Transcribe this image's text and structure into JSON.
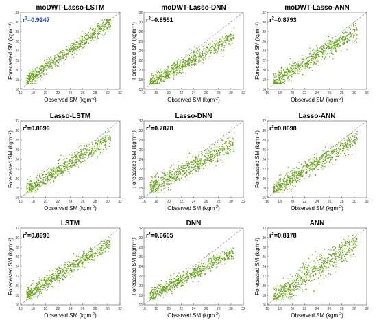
{
  "figure": {
    "point_color": "#6aa51e",
    "refline_color": "#8c8c8c",
    "highlight_r2_color": "#1f3fd6",
    "normal_r2_color": "#000000"
  },
  "chart_data": [
    {
      "type": "scatter",
      "title": "moDWT-Lasso-LSTM",
      "r2_base": "r",
      "r2_sup": "2",
      "r2_value": "=0.9247",
      "r2_highlight": true,
      "xlabel_main": "Observed SM (kgm",
      "xlabel_sup": "-2",
      "xlabel_end": ")",
      "ylabel": "Forecasted SM (kgm⁻²)",
      "xlim": [
        16,
        32
      ],
      "ylim": [
        16,
        32
      ],
      "xticks": [
        "16",
        "18",
        "20",
        "22",
        "24",
        "26",
        "28",
        "30",
        "32"
      ],
      "yticks": [
        "16",
        "18",
        "20",
        "22",
        "24",
        "26",
        "28",
        "30",
        "32"
      ],
      "grid": false,
      "reference_line": "1:1",
      "fit": {
        "a": 2.5,
        "b": 0.9,
        "sd": 0.75,
        "n": 700
      }
    },
    {
      "type": "scatter",
      "title": "moDWT-Lasso-DNN",
      "r2_base": "r",
      "r2_sup": "2",
      "r2_value": "=0.8551",
      "r2_highlight": false,
      "xlabel_main": "Observed SM (kgm",
      "xlabel_sup": "-2",
      "xlabel_end": ")",
      "ylabel": "Forecasted SM (kgm⁻²)",
      "xlim": [
        16,
        32
      ],
      "ylim": [
        16,
        32
      ],
      "xticks": [
        "16",
        "18",
        "20",
        "22",
        "24",
        "26",
        "28",
        "30",
        "32"
      ],
      "yticks": [
        "16",
        "18",
        "20",
        "22",
        "24",
        "26",
        "28",
        "30",
        "32"
      ],
      "grid": false,
      "reference_line": "1:1",
      "fit": {
        "a": 5.0,
        "b": 0.72,
        "sd": 0.8,
        "n": 700
      }
    },
    {
      "type": "scatter",
      "title": "moDWT-Lasso-ANN",
      "r2_base": "r",
      "r2_sup": "2",
      "r2_value": "=0.8793",
      "r2_highlight": false,
      "xlabel_main": "Observed SM (kgm",
      "xlabel_sup": "-2",
      "xlabel_end": ")",
      "ylabel": "Forecasted SM (kgm⁻²)",
      "xlim": [
        16,
        32
      ],
      "ylim": [
        16,
        32
      ],
      "xticks": [
        "16",
        "18",
        "20",
        "22",
        "24",
        "26",
        "28",
        "30",
        "32"
      ],
      "yticks": [
        "16",
        "18",
        "20",
        "22",
        "24",
        "26",
        "28",
        "30",
        "32"
      ],
      "grid": false,
      "reference_line": "1:1",
      "fit": {
        "a": 4.5,
        "b": 0.77,
        "sd": 0.9,
        "n": 700
      }
    },
    {
      "type": "scatter",
      "title": "Lasso-LSTM",
      "r2_base": "r",
      "r2_sup": "2",
      "r2_value": "=0.8699",
      "r2_highlight": false,
      "xlabel_main": "Observed SM (kgm",
      "xlabel_sup": "-2",
      "xlabel_end": ")",
      "ylabel": "Forecasted SM (kgm⁻²)",
      "xlim": [
        16,
        32
      ],
      "ylim": [
        16,
        32
      ],
      "xticks": [
        "16",
        "18",
        "20",
        "22",
        "24",
        "26",
        "28",
        "30",
        "32"
      ],
      "yticks": [
        "16",
        "18",
        "20",
        "22",
        "24",
        "26",
        "28",
        "30",
        "32"
      ],
      "grid": false,
      "reference_line": "1:1",
      "fit": {
        "a": 4.0,
        "b": 0.8,
        "sd": 0.85,
        "n": 700
      }
    },
    {
      "type": "scatter",
      "title": "Lasso-DNN",
      "r2_base": "r",
      "r2_sup": "2",
      "r2_value": "=0.7878",
      "r2_highlight": false,
      "xlabel_main": "Observed SM (kgm",
      "xlabel_sup": "-2",
      "xlabel_end": ")",
      "ylabel": "Forecasted SM (kgm⁻²)",
      "xlim": [
        16,
        32
      ],
      "ylim": [
        16,
        32
      ],
      "xticks": [
        "16",
        "18",
        "20",
        "22",
        "24",
        "26",
        "28",
        "30",
        "32"
      ],
      "yticks": [
        "16",
        "18",
        "20",
        "22",
        "24",
        "26",
        "28",
        "30",
        "32"
      ],
      "grid": false,
      "reference_line": "1:1",
      "fit": {
        "a": 6.5,
        "b": 0.68,
        "sd": 1.0,
        "n": 700
      }
    },
    {
      "type": "scatter",
      "title": "Lasso-ANN",
      "r2_base": "r",
      "r2_sup": "2",
      "r2_value": "=0.8698",
      "r2_highlight": false,
      "xlabel_main": "Observed SM (kgm",
      "xlabel_sup": "-2",
      "xlabel_end": ")",
      "ylabel": "Forecasted SM (kgm⁻²)",
      "xlim": [
        16,
        32
      ],
      "ylim": [
        16,
        32
      ],
      "xticks": [
        "16",
        "18",
        "20",
        "22",
        "24",
        "26",
        "28",
        "30",
        "32"
      ],
      "yticks": [
        "16",
        "18",
        "20",
        "22",
        "24",
        "26",
        "28",
        "30",
        "32"
      ],
      "grid": false,
      "reference_line": "1:1",
      "fit": {
        "a": 4.0,
        "b": 0.8,
        "sd": 0.9,
        "n": 700
      }
    },
    {
      "type": "scatter",
      "title": "LSTM",
      "r2_base": "r",
      "r2_sup": "2",
      "r2_value": "=0.8993",
      "r2_highlight": false,
      "xlabel_main": "Observed SM (kgm",
      "xlabel_sup": "-2",
      "xlabel_end": ")",
      "ylabel": "Forecasted SM (kgm⁻²)",
      "xlim": [
        16,
        32
      ],
      "ylim": [
        16,
        32
      ],
      "xticks": [
        "16",
        "18",
        "20",
        "22",
        "24",
        "26",
        "28",
        "30",
        "32"
      ],
      "yticks": [
        "16",
        "18",
        "20",
        "22",
        "24",
        "26",
        "28",
        "30",
        "32"
      ],
      "grid": false,
      "reference_line": "1:1",
      "fit": {
        "a": 4.5,
        "b": 0.8,
        "sd": 0.8,
        "n": 700
      }
    },
    {
      "type": "scatter",
      "title": "DNN",
      "r2_base": "r",
      "r2_sup": "2",
      "r2_value": "=0.6605",
      "r2_highlight": false,
      "xlabel_main": "Observed SM (kgm",
      "xlabel_sup": "-2",
      "xlabel_end": ")",
      "ylabel": "Forecasted SM (kgm⁻²)",
      "xlim": [
        16,
        32
      ],
      "ylim": [
        16,
        32
      ],
      "xticks": [
        "16",
        "18",
        "20",
        "22",
        "24",
        "26",
        "28",
        "30",
        "32"
      ],
      "yticks": [
        "16",
        "18",
        "20",
        "22",
        "24",
        "26",
        "28",
        "30",
        "32"
      ],
      "grid": false,
      "reference_line": "1:1",
      "fit": {
        "a": 6.5,
        "b": 0.67,
        "sd": 0.7,
        "n": 700
      }
    },
    {
      "type": "scatter",
      "title": "ANN",
      "r2_base": "r",
      "r2_sup": "2",
      "r2_value": "=0.8178",
      "r2_highlight": false,
      "xlabel_main": "Observed SM (kgm",
      "xlabel_sup": "-2",
      "xlabel_end": ")",
      "ylabel": "Forecasted SM (kgm⁻²)",
      "xlim": [
        16,
        32
      ],
      "ylim": [
        16,
        32
      ],
      "xticks": [
        "16",
        "18",
        "20",
        "22",
        "24",
        "26",
        "28",
        "30",
        "32"
      ],
      "yticks": [
        "16",
        "18",
        "20",
        "22",
        "24",
        "26",
        "28",
        "30",
        "32"
      ],
      "grid": false,
      "reference_line": "1:1",
      "fit": {
        "a": 2.0,
        "b": 0.9,
        "sd": 1.2,
        "n": 700
      }
    }
  ]
}
